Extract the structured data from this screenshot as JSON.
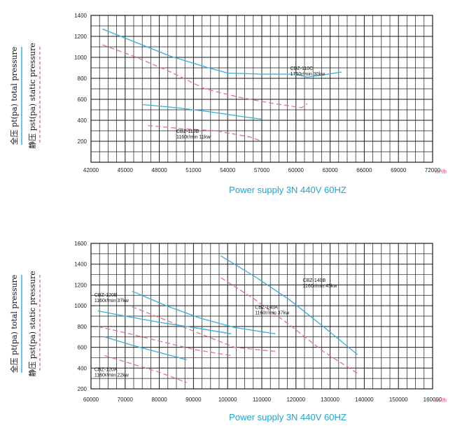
{
  "colors": {
    "total": "#33aede",
    "static": "#e86e8e",
    "grid": "#1a1a1a",
    "supply": "#1aa7d6"
  },
  "chart_data": [
    {
      "type": "line",
      "title": "",
      "footer": "Power supply   3N 440V  60HZ",
      "unit_label": "m³/h",
      "ylabel_total": "全压 pt(pa) total pressure",
      "ylabel_static": "静压 pst(pa) static pressure",
      "xlim": [
        42000,
        72000
      ],
      "ylim": [
        0,
        1400
      ],
      "x_ticks": [
        "42000",
        "45000",
        "48000",
        "51000",
        "54000",
        "57000",
        "60000",
        "63000",
        "66000",
        "69000",
        "72000"
      ],
      "y_ticks": [
        "200",
        "400",
        "600",
        "800",
        "1000",
        "1200",
        "1400"
      ],
      "series": [
        {
          "name": "CBZ-110C",
          "kind": "total",
          "x": [
            43000,
            46000,
            49000,
            52000,
            54000,
            57000,
            60000,
            61000,
            64000
          ],
          "y": [
            1270,
            1140,
            1010,
            910,
            850,
            840,
            840,
            810,
            860
          ]
        },
        {
          "name": "CBZ-110C",
          "kind": "static",
          "x": [
            43000,
            46000,
            49000,
            52000,
            55000,
            58000,
            60500,
            61000
          ],
          "y": [
            1120,
            1000,
            860,
            700,
            620,
            560,
            520,
            560
          ]
        },
        {
          "name": "CBZ-110B",
          "kind": "total",
          "x": [
            46500,
            49500,
            52500,
            55000,
            57000
          ],
          "y": [
            550,
            520,
            480,
            440,
            410
          ]
        },
        {
          "name": "CBZ-110B",
          "kind": "static",
          "x": [
            47000,
            50000,
            53000,
            56000,
            57000
          ],
          "y": [
            350,
            320,
            300,
            240,
            200
          ]
        }
      ],
      "annotations": [
        {
          "lines": [
            "CBZ-110C",
            "1750r/min 30kw"
          ],
          "x": 59500,
          "y": 880
        },
        {
          "lines": [
            "CBZ-110B",
            "1160r/min 11kw"
          ],
          "x": 49500,
          "y": 280
        }
      ]
    },
    {
      "type": "line",
      "title": "",
      "footer": "Power supply   3N 440V  60HZ",
      "unit_label": "m³/h",
      "ylabel_total": "全压 pt(pa) total pressure",
      "ylabel_static": "静压 pst(pa) static pressure",
      "xlim": [
        60000,
        160000
      ],
      "ylim": [
        200,
        1600
      ],
      "x_ticks": [
        "60000",
        "70000",
        "80000",
        "90000",
        "100000",
        "110000",
        "120000",
        "130000",
        "140000",
        "150000",
        "160000"
      ],
      "y_ticks": [
        "200",
        "400",
        "600",
        "800",
        "1000",
        "1200",
        "1400",
        "1600"
      ],
      "series": [
        {
          "name": "CBZ-140B",
          "kind": "total",
          "x": [
            98000,
            108000,
            118000,
            128000,
            138000
          ],
          "y": [
            1480,
            1280,
            1060,
            800,
            530
          ]
        },
        {
          "name": "CBZ-140B",
          "kind": "static",
          "x": [
            98000,
            108000,
            118000,
            128000,
            138000
          ],
          "y": [
            1270,
            1060,
            820,
            560,
            350
          ]
        },
        {
          "name": "CBZ-140A",
          "kind": "total",
          "x": [
            72000,
            82000,
            92000,
            102000,
            114000
          ],
          "y": [
            1140,
            1000,
            880,
            790,
            730
          ]
        },
        {
          "name": "CBZ-140A",
          "kind": "static",
          "x": [
            72000,
            82000,
            92000,
            102000,
            114000
          ],
          "y": [
            990,
            860,
            730,
            600,
            560
          ]
        },
        {
          "name": "CBZ-120B",
          "kind": "total",
          "x": [
            62000,
            70000,
            80000,
            90000,
            101000
          ],
          "y": [
            950,
            900,
            840,
            790,
            730
          ]
        },
        {
          "name": "CBZ-120B",
          "kind": "static",
          "x": [
            62000,
            70000,
            80000,
            90000,
            101000
          ],
          "y": [
            800,
            740,
            660,
            580,
            520
          ]
        },
        {
          "name": "CBZ-120A",
          "kind": "total",
          "x": [
            64000,
            72000,
            80000,
            88000
          ],
          "y": [
            700,
            620,
            550,
            480
          ]
        },
        {
          "name": "CBZ-120A",
          "kind": "static",
          "x": [
            64000,
            72000,
            80000,
            88000
          ],
          "y": [
            520,
            440,
            360,
            260
          ]
        }
      ],
      "annotations": [
        {
          "lines": [
            "CBZ-140B",
            "1160r/min 45kw"
          ],
          "x": 122000,
          "y": 1230
        },
        {
          "lines": [
            "CBZ-140A",
            "1160r/min 37kw"
          ],
          "x": 108000,
          "y": 970
        },
        {
          "lines": [
            "CBZ-120B",
            "1160r/min 37kw"
          ],
          "x": 61000,
          "y": 1090
        },
        {
          "lines": [
            "CBZ-120A",
            "1160r/min 22kw"
          ],
          "x": 61000,
          "y": 370
        }
      ]
    }
  ]
}
